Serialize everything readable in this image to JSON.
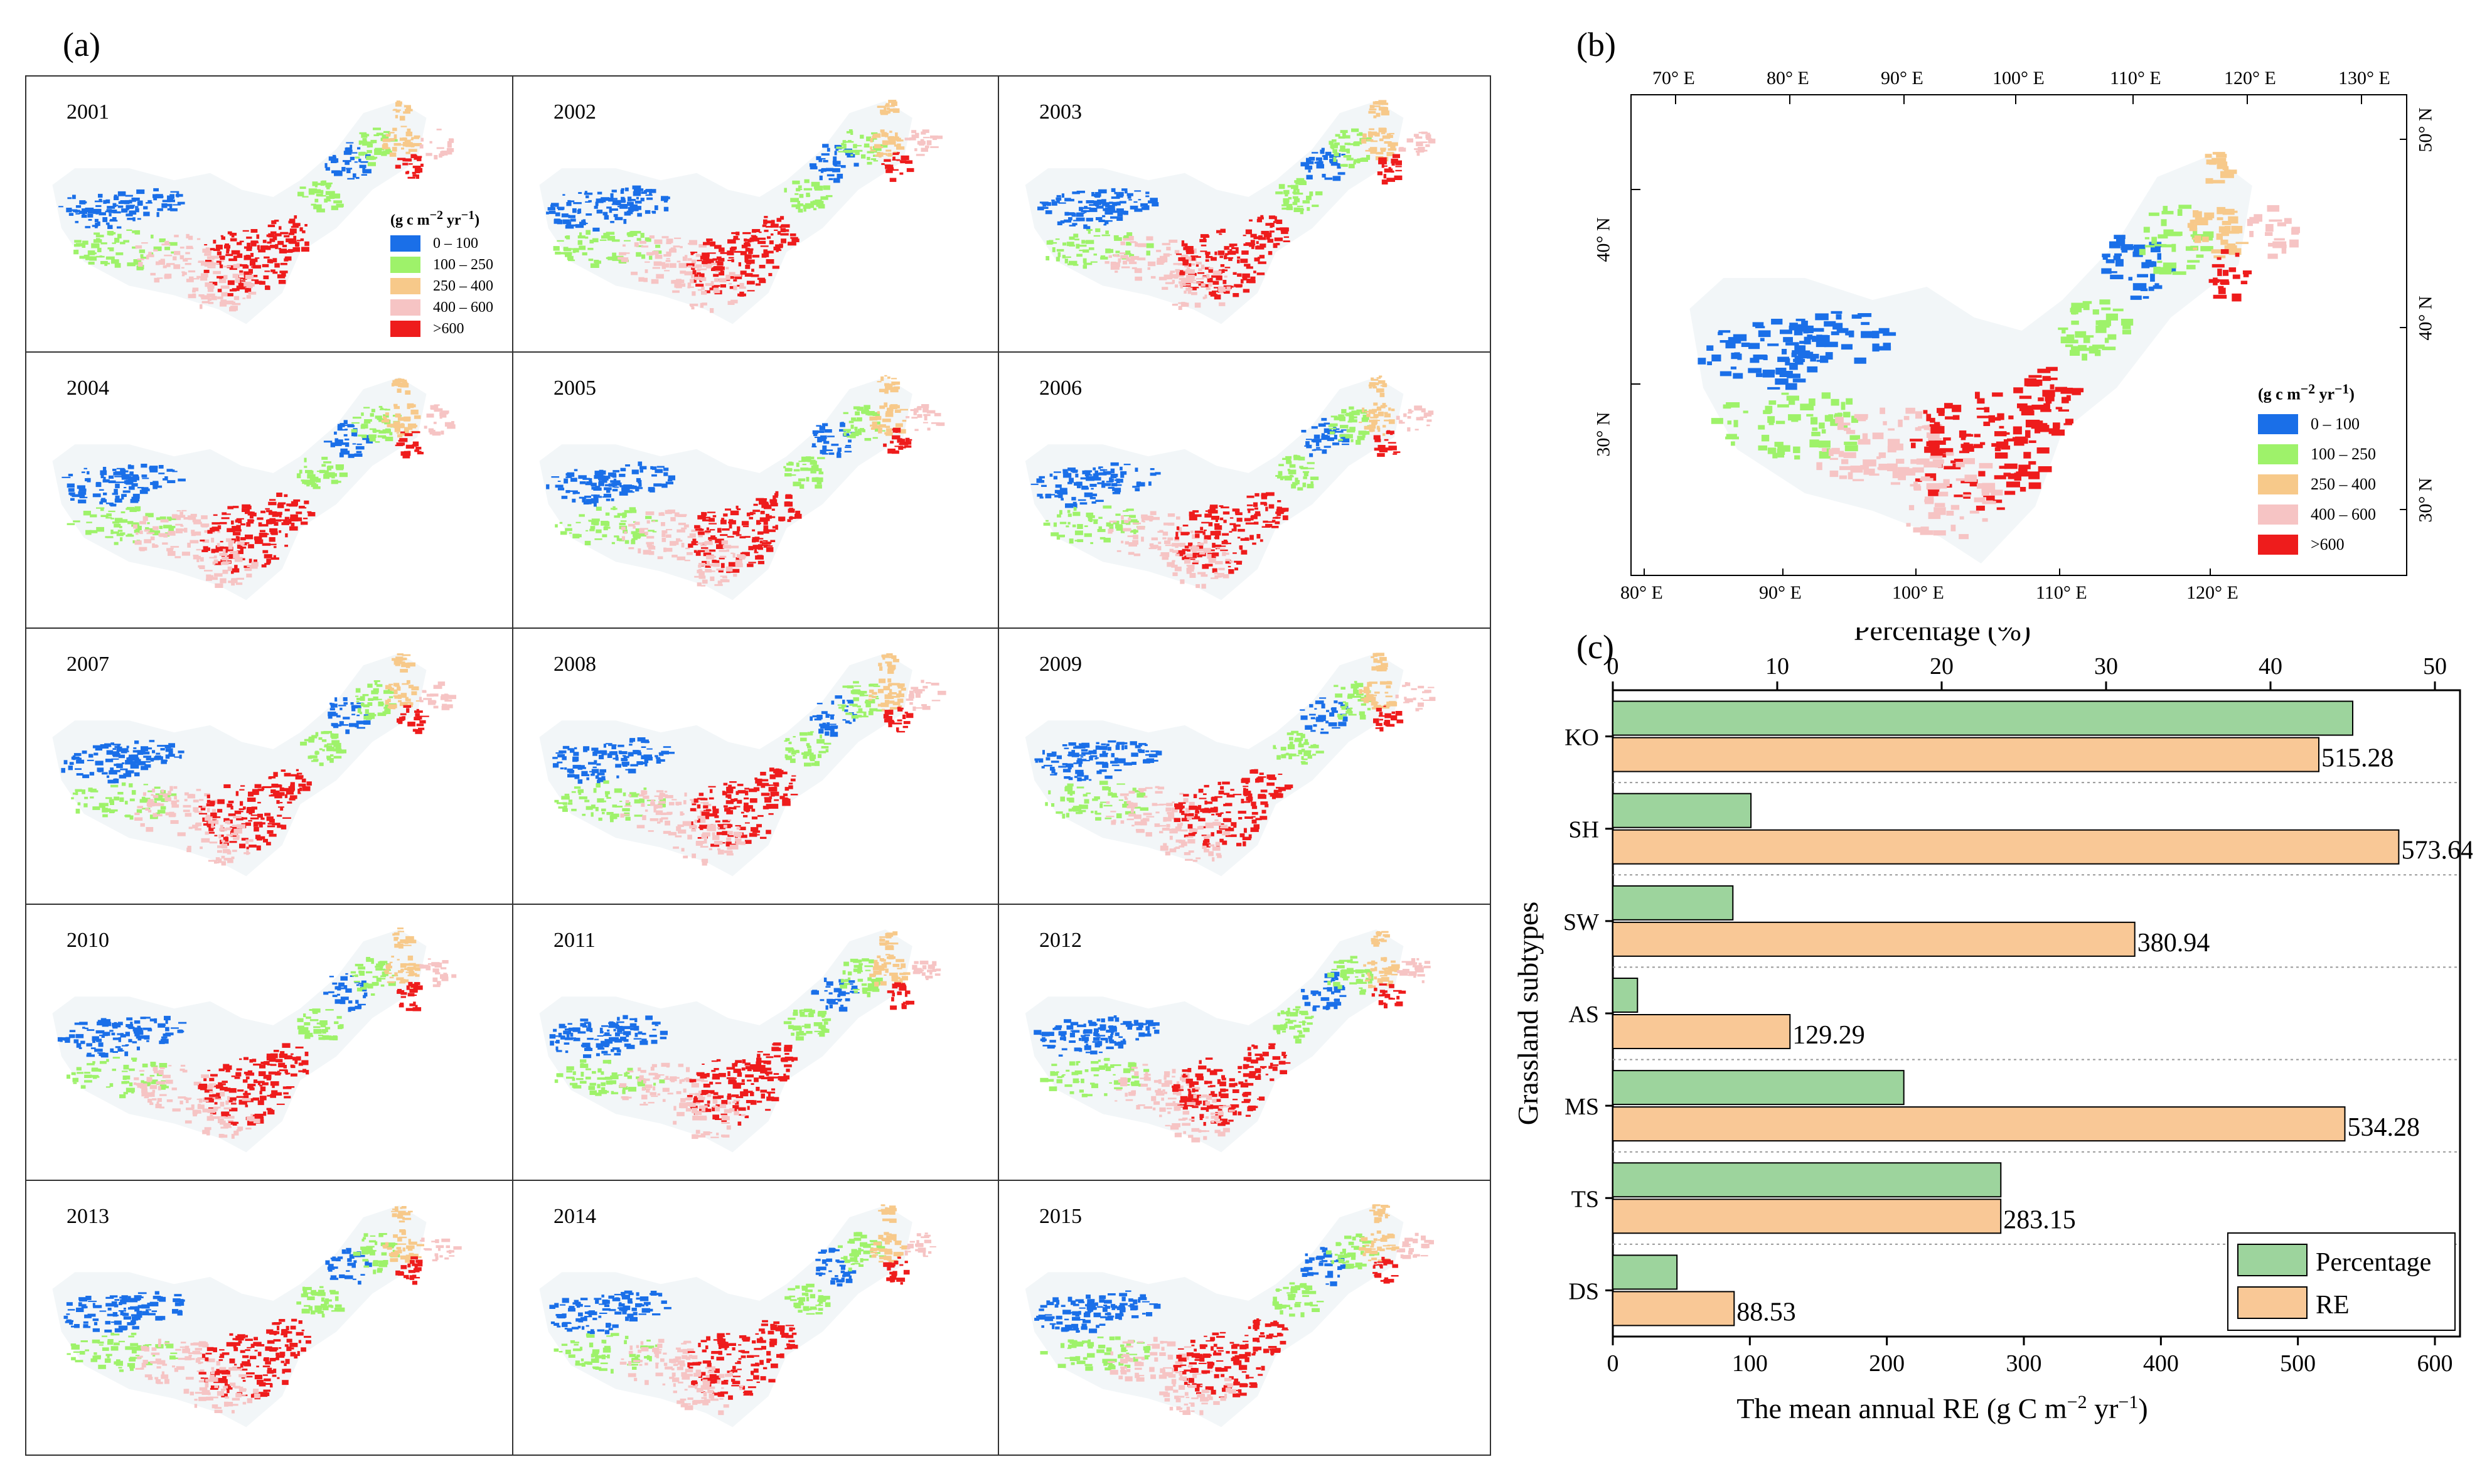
{
  "panels": {
    "a": "(a)",
    "b": "(b)",
    "c": "(c)"
  },
  "years": [
    "2001",
    "2002",
    "2003",
    "2004",
    "2005",
    "2006",
    "2007",
    "2008",
    "2009",
    "2010",
    "2011",
    "2012",
    "2013",
    "2014",
    "2015"
  ],
  "legend": {
    "title": "(g c m",
    "title_sup": "−2",
    "title_mid": " yr",
    "title_sup2": "−1",
    "title_end": ")",
    "items": [
      {
        "label": "0 – 100",
        "color": "#1a6fe8"
      },
      {
        "label": "100 – 250",
        "color": "#9ef26a"
      },
      {
        "label": "250 – 400",
        "color": "#f7c98a"
      },
      {
        "label": "400 – 600",
        "color": "#f6c4c4"
      },
      {
        "label": ">600",
        "color": "#ee1c1c"
      }
    ]
  },
  "map_b": {
    "top_ticks": [
      "70° E",
      "80° E",
      "90° E",
      "100° E",
      "110° E",
      "120° E",
      "130° E"
    ],
    "bottom_ticks": [
      "80° E",
      "90° E",
      "100° E",
      "110° E",
      "120° E"
    ],
    "left_ticks": [
      "40° N",
      "30° N"
    ],
    "right_ticks": [
      "50° N",
      "40° N",
      "30° N"
    ]
  },
  "chart_data": {
    "type": "bar",
    "orientation": "horizontal",
    "title": "",
    "ylabel": "Grassland subtypes",
    "xlabel_bottom": "The mean annual RE (g C m",
    "xlabel_bottom_sup1": "−2",
    "xlabel_bottom_mid": " yr",
    "xlabel_bottom_sup2": "−1",
    "xlabel_bottom_end": ")",
    "xlabel_top": "Percentage (%)",
    "categories": [
      "KO",
      "SH",
      "SW",
      "AS",
      "MS",
      "TS",
      "DS"
    ],
    "series": [
      {
        "name": "Percentage",
        "axis": "top",
        "color": "#9dd49d",
        "values": [
          45.0,
          8.4,
          7.3,
          1.5,
          17.7,
          23.6,
          3.9
        ]
      },
      {
        "name": "RE",
        "axis": "bottom",
        "color": "#f9c896",
        "values": [
          515.28,
          573.64,
          380.94,
          129.29,
          534.28,
          283.15,
          88.53
        ],
        "labels": [
          "515.28",
          "573.64",
          "380.94",
          "129.29",
          "534.28",
          "283.15",
          "88.53"
        ]
      }
    ],
    "xlim_bottom": [
      0,
      600
    ],
    "xticks_bottom": [
      "0",
      "100",
      "200",
      "300",
      "400",
      "500",
      "600"
    ],
    "xlim_top": [
      0,
      50
    ],
    "xticks_top": [
      "0",
      "10",
      "20",
      "30",
      "40",
      "50"
    ],
    "legend_position": "bottom-right"
  }
}
